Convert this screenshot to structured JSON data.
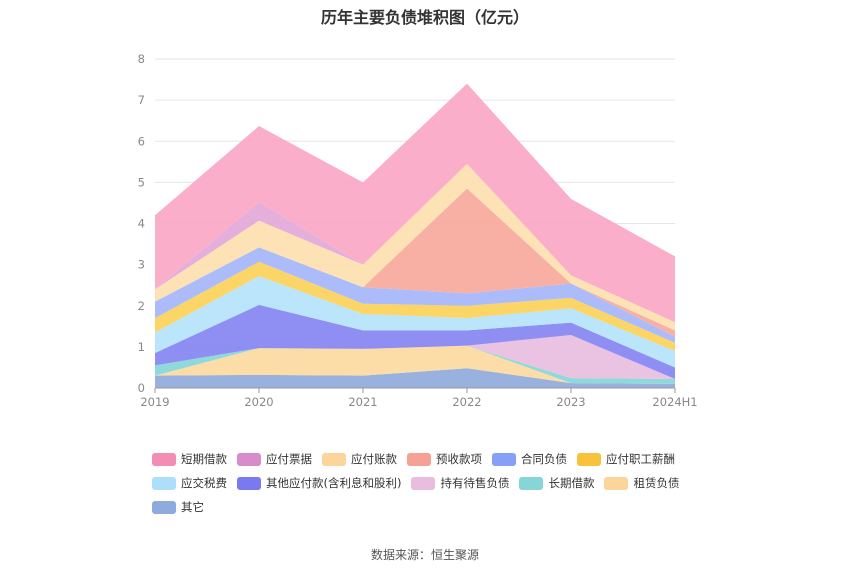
{
  "title": "历年主要负债堆积图（亿元）",
  "source_label": "数据来源：恒生聚源",
  "chart_data": {
    "type": "area",
    "stacked": true,
    "title": "历年主要负债堆积图（亿元）",
    "categories": [
      "2019",
      "2020",
      "2021",
      "2022",
      "2023",
      "2024H1"
    ],
    "ylim": [
      0,
      8
    ],
    "yticks": [
      0,
      1,
      2,
      3,
      4,
      5,
      6,
      7,
      8
    ],
    "grid": true,
    "legend_position": "bottom",
    "series": [
      {
        "name": "其它",
        "color": "#8faadc",
        "values": [
          0.3,
          0.32,
          0.3,
          0.48,
          0.12,
          0.1
        ]
      },
      {
        "name": "租赁负债",
        "color": "#fcd9a0",
        "values": [
          0.0,
          0.65,
          0.65,
          0.55,
          0.0,
          0.0
        ]
      },
      {
        "name": "长期借款",
        "color": "#86d6d8",
        "values": [
          0.25,
          0.0,
          0.0,
          0.0,
          0.12,
          0.12
        ]
      },
      {
        "name": "持有待售负债",
        "color": "#e8bde0",
        "values": [
          0.0,
          0.0,
          0.0,
          0.0,
          1.05,
          0.0
        ]
      },
      {
        "name": "其他应付款(含利息和股利)",
        "color": "#8585f2",
        "values": [
          0.3,
          1.05,
          0.45,
          0.37,
          0.3,
          0.28
        ]
      },
      {
        "name": "应交税费",
        "color": "#b5e3fa",
        "values": [
          0.5,
          0.7,
          0.4,
          0.3,
          0.35,
          0.4
        ]
      },
      {
        "name": "应付职工薪酬",
        "color": "#fcd15a",
        "values": [
          0.35,
          0.35,
          0.25,
          0.3,
          0.25,
          0.2
        ]
      },
      {
        "name": "合同负债",
        "color": "#a5b6fb",
        "values": [
          0.4,
          0.35,
          0.4,
          0.3,
          0.35,
          0.15
        ]
      },
      {
        "name": "预收款项",
        "color": "#f8a99c",
        "values": [
          0.0,
          0.0,
          0.0,
          2.55,
          0.0,
          0.15
        ]
      },
      {
        "name": "应付账款",
        "color": "#fde0b0",
        "values": [
          0.3,
          0.65,
          0.55,
          0.6,
          0.2,
          0.2
        ]
      },
      {
        "name": "应付票据",
        "color": "#e2a8d8",
        "values": [
          0.0,
          0.45,
          0.0,
          0.0,
          0.0,
          0.0
        ]
      },
      {
        "name": "短期借款",
        "color": "#fba7c6",
        "values": [
          1.8,
          1.85,
          2.0,
          1.95,
          1.86,
          1.6
        ]
      }
    ]
  },
  "legend_order": [
    {
      "name": "短期借款",
      "color": "#f28db5"
    },
    {
      "name": "应付票据",
      "color": "#d98ccb"
    },
    {
      "name": "应付账款",
      "color": "#fdd59a"
    },
    {
      "name": "预收款项",
      "color": "#f7a196"
    },
    {
      "name": "合同负债",
      "color": "#86a0f5"
    },
    {
      "name": "应付职工薪酬",
      "color": "#f9c23c"
    },
    {
      "name": "应交税费",
      "color": "#addffa"
    },
    {
      "name": "其他应付款(含利息和股利)",
      "color": "#7a7af0"
    },
    {
      "name": "持有待售负债",
      "color": "#e8bde0"
    },
    {
      "name": "长期借款",
      "color": "#86d6d8"
    },
    {
      "name": "租赁负债",
      "color": "#fcd59a"
    },
    {
      "name": "其它",
      "color": "#8faadc"
    }
  ]
}
